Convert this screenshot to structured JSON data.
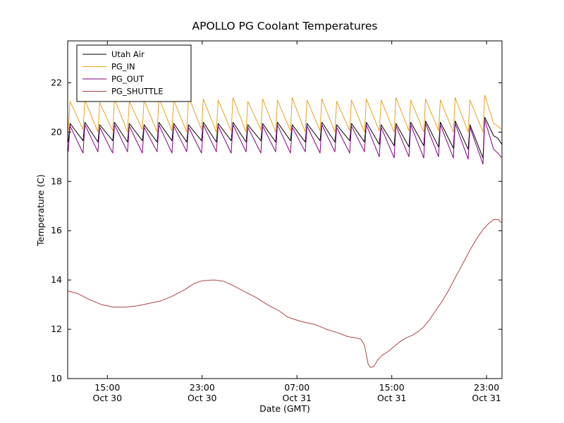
{
  "chart_data": {
    "type": "line",
    "title": "APOLLO PG Coolant Temperatures",
    "xlabel": "Date (GMT)",
    "ylabel": "Temperature (C)",
    "x_unit": "hours since Oct 30 00:00 GMT",
    "xlim": [
      11.65,
      48.3
    ],
    "ylim": [
      10,
      23.7
    ],
    "grid": false,
    "legend_position": "upper left",
    "x_ticks": [
      {
        "value": 15,
        "time": "15:00",
        "date": "Oct 30"
      },
      {
        "value": 23,
        "time": "23:00",
        "date": "Oct 30"
      },
      {
        "value": 31,
        "time": "07:00",
        "date": "Oct 31"
      },
      {
        "value": 39,
        "time": "15:00",
        "date": "Oct 31"
      },
      {
        "value": 47,
        "time": "23:00",
        "date": "Oct 31"
      }
    ],
    "y_ticks": [
      10,
      12,
      14,
      16,
      18,
      20,
      22
    ],
    "series": [
      {
        "name": "Utah Air",
        "color": "#000000",
        "points": [
          [
            11.7,
            19.6
          ],
          [
            11.85,
            20.35
          ],
          [
            12.95,
            19.65
          ],
          [
            13.1,
            20.4
          ],
          [
            14.2,
            19.6
          ],
          [
            14.35,
            20.3
          ],
          [
            15.45,
            19.65
          ],
          [
            15.6,
            20.4
          ],
          [
            16.7,
            19.6
          ],
          [
            16.85,
            20.35
          ],
          [
            17.95,
            19.65
          ],
          [
            18.1,
            20.3
          ],
          [
            19.2,
            19.6
          ],
          [
            19.35,
            20.4
          ],
          [
            20.45,
            19.65
          ],
          [
            20.6,
            20.35
          ],
          [
            21.7,
            19.6
          ],
          [
            21.85,
            20.3
          ],
          [
            22.95,
            19.65
          ],
          [
            23.1,
            20.4
          ],
          [
            24.2,
            19.6
          ],
          [
            24.35,
            20.35
          ],
          [
            25.45,
            19.65
          ],
          [
            25.6,
            20.4
          ],
          [
            26.7,
            19.6
          ],
          [
            26.85,
            20.3
          ],
          [
            27.95,
            19.65
          ],
          [
            28.1,
            20.35
          ],
          [
            29.2,
            19.6
          ],
          [
            29.35,
            20.4
          ],
          [
            30.45,
            19.65
          ],
          [
            30.6,
            20.3
          ],
          [
            31.7,
            19.6
          ],
          [
            31.85,
            20.35
          ],
          [
            32.95,
            19.65
          ],
          [
            33.1,
            20.4
          ],
          [
            34.2,
            19.6
          ],
          [
            34.35,
            20.3
          ],
          [
            35.45,
            19.65
          ],
          [
            35.6,
            20.35
          ],
          [
            36.7,
            19.6
          ],
          [
            36.85,
            20.4
          ],
          [
            37.95,
            19.5
          ],
          [
            38.1,
            20.3
          ],
          [
            39.2,
            19.45
          ],
          [
            39.35,
            20.35
          ],
          [
            40.45,
            19.4
          ],
          [
            40.6,
            20.4
          ],
          [
            41.7,
            19.45
          ],
          [
            41.85,
            20.45
          ],
          [
            42.95,
            19.4
          ],
          [
            43.1,
            20.4
          ],
          [
            44.2,
            19.35
          ],
          [
            44.35,
            20.45
          ],
          [
            45.45,
            19.3
          ],
          [
            45.6,
            20.3
          ],
          [
            46.7,
            18.95
          ],
          [
            46.85,
            20.6
          ],
          [
            47.6,
            19.85
          ],
          [
            47.95,
            19.75
          ],
          [
            48.3,
            19.5
          ]
        ]
      },
      {
        "name": "PG_IN",
        "color": "#e8a020",
        "points": [
          [
            11.7,
            20.05
          ],
          [
            11.85,
            21.25
          ],
          [
            12.95,
            20.1
          ],
          [
            13.1,
            21.3
          ],
          [
            14.2,
            20
          ],
          [
            14.35,
            21.2
          ],
          [
            15.45,
            20.05
          ],
          [
            15.6,
            21.35
          ],
          [
            16.7,
            20
          ],
          [
            16.85,
            21.25
          ],
          [
            17.95,
            20.1
          ],
          [
            18.1,
            21.3
          ],
          [
            19.2,
            20
          ],
          [
            19.35,
            21.4
          ],
          [
            20.45,
            20.05
          ],
          [
            20.6,
            21.3
          ],
          [
            21.7,
            20
          ],
          [
            21.85,
            21.45
          ],
          [
            22.95,
            20.1
          ],
          [
            23.1,
            21.35
          ],
          [
            24.2,
            20
          ],
          [
            24.35,
            21.3
          ],
          [
            25.45,
            20.05
          ],
          [
            25.6,
            21.4
          ],
          [
            26.7,
            20
          ],
          [
            26.85,
            21.25
          ],
          [
            27.95,
            20.1
          ],
          [
            28.1,
            21.35
          ],
          [
            29.2,
            20
          ],
          [
            29.35,
            21.3
          ],
          [
            30.45,
            20.05
          ],
          [
            30.6,
            21.4
          ],
          [
            31.7,
            20
          ],
          [
            31.85,
            21.3
          ],
          [
            32.95,
            20.05
          ],
          [
            33.1,
            21.35
          ],
          [
            34.2,
            20
          ],
          [
            34.35,
            21.25
          ],
          [
            35.45,
            20.05
          ],
          [
            35.6,
            21.3
          ],
          [
            36.7,
            20
          ],
          [
            36.85,
            21.35
          ],
          [
            37.95,
            20.05
          ],
          [
            38.1,
            21.3
          ],
          [
            39.2,
            20
          ],
          [
            39.35,
            21.4
          ],
          [
            40.45,
            20.05
          ],
          [
            40.6,
            21.3
          ],
          [
            41.7,
            20
          ],
          [
            41.85,
            21.35
          ],
          [
            42.95,
            20.05
          ],
          [
            43.1,
            21.3
          ],
          [
            44.2,
            20
          ],
          [
            44.35,
            21.4
          ],
          [
            45.45,
            20
          ],
          [
            45.6,
            21.3
          ],
          [
            46.7,
            20
          ],
          [
            46.85,
            21.5
          ],
          [
            47.6,
            20.35
          ],
          [
            47.95,
            20.25
          ],
          [
            48.3,
            20.1
          ]
        ]
      },
      {
        "name": "PG_OUT",
        "color": "#800080",
        "points": [
          [
            11.7,
            19.2
          ],
          [
            11.85,
            20.25
          ],
          [
            12.95,
            19.15
          ],
          [
            13.1,
            20.3
          ],
          [
            14.2,
            19.2
          ],
          [
            14.35,
            20.2
          ],
          [
            15.45,
            19.15
          ],
          [
            15.6,
            20.3
          ],
          [
            16.7,
            19.2
          ],
          [
            16.85,
            20.25
          ],
          [
            17.95,
            19.15
          ],
          [
            18.1,
            20.2
          ],
          [
            19.2,
            19.2
          ],
          [
            19.35,
            20.3
          ],
          [
            20.45,
            19.15
          ],
          [
            20.6,
            20.25
          ],
          [
            21.7,
            19.2
          ],
          [
            21.85,
            20.2
          ],
          [
            22.95,
            19.15
          ],
          [
            23.1,
            20.3
          ],
          [
            24.2,
            19.2
          ],
          [
            24.35,
            20.25
          ],
          [
            25.45,
            19.15
          ],
          [
            25.6,
            20.3
          ],
          [
            26.7,
            19.2
          ],
          [
            26.85,
            20.2
          ],
          [
            27.95,
            19.15
          ],
          [
            28.1,
            20.25
          ],
          [
            29.2,
            19.2
          ],
          [
            29.35,
            20.3
          ],
          [
            30.45,
            19.15
          ],
          [
            30.6,
            20.2
          ],
          [
            31.7,
            19.2
          ],
          [
            31.85,
            20.25
          ],
          [
            32.95,
            19.15
          ],
          [
            33.1,
            20.3
          ],
          [
            34.2,
            19.2
          ],
          [
            34.35,
            20.2
          ],
          [
            35.45,
            19.15
          ],
          [
            35.6,
            20.25
          ],
          [
            36.7,
            19.2
          ],
          [
            36.85,
            20.3
          ],
          [
            37.95,
            19
          ],
          [
            38.1,
            20.2
          ],
          [
            39.2,
            18.95
          ],
          [
            39.35,
            20.25
          ],
          [
            40.45,
            19
          ],
          [
            40.6,
            20.3
          ],
          [
            41.7,
            18.95
          ],
          [
            41.85,
            20.35
          ],
          [
            42.95,
            19
          ],
          [
            43.1,
            20.3
          ],
          [
            44.2,
            18.95
          ],
          [
            44.35,
            20.35
          ],
          [
            45.45,
            18.9
          ],
          [
            45.6,
            20.2
          ],
          [
            46.7,
            18.7
          ],
          [
            46.85,
            20.5
          ],
          [
            47.6,
            19.3
          ],
          [
            47.95,
            19.15
          ],
          [
            48.3,
            18.95
          ]
        ]
      },
      {
        "name": "PG_SHUTTLE",
        "color": "#aa4444",
        "points": [
          [
            11.7,
            13.55
          ],
          [
            12.5,
            13.45
          ],
          [
            13.5,
            13.2
          ],
          [
            14.5,
            13
          ],
          [
            15.5,
            12.9
          ],
          [
            16.5,
            12.9
          ],
          [
            17.5,
            12.95
          ],
          [
            18.5,
            13.05
          ],
          [
            19.5,
            13.15
          ],
          [
            20.5,
            13.35
          ],
          [
            21.5,
            13.6
          ],
          [
            22.3,
            13.85
          ],
          [
            23,
            13.97
          ],
          [
            24,
            14
          ],
          [
            24.8,
            13.95
          ],
          [
            25.5,
            13.8
          ],
          [
            26.5,
            13.55
          ],
          [
            27.5,
            13.3
          ],
          [
            28.5,
            13
          ],
          [
            29.5,
            12.75
          ],
          [
            30.2,
            12.5
          ],
          [
            30.8,
            12.4
          ],
          [
            31.5,
            12.3
          ],
          [
            32.5,
            12.2
          ],
          [
            33.5,
            12
          ],
          [
            34.5,
            11.85
          ],
          [
            35.3,
            11.7
          ],
          [
            36,
            11.65
          ],
          [
            36.4,
            11.6
          ],
          [
            36.7,
            11.35
          ],
          [
            37,
            10.6
          ],
          [
            37.2,
            10.45
          ],
          [
            37.5,
            10.5
          ],
          [
            37.8,
            10.75
          ],
          [
            38.2,
            10.95
          ],
          [
            38.7,
            11.1
          ],
          [
            39.2,
            11.3
          ],
          [
            39.7,
            11.5
          ],
          [
            40.2,
            11.65
          ],
          [
            40.7,
            11.75
          ],
          [
            41.2,
            11.9
          ],
          [
            41.7,
            12.1
          ],
          [
            42.2,
            12.4
          ],
          [
            42.7,
            12.75
          ],
          [
            43.2,
            13.1
          ],
          [
            43.7,
            13.5
          ],
          [
            44.2,
            13.95
          ],
          [
            44.7,
            14.4
          ],
          [
            45.2,
            14.85
          ],
          [
            45.7,
            15.3
          ],
          [
            46.2,
            15.7
          ],
          [
            46.7,
            16.05
          ],
          [
            47.2,
            16.3
          ],
          [
            47.6,
            16.45
          ],
          [
            48,
            16.45
          ],
          [
            48.3,
            16.3
          ]
        ]
      }
    ]
  }
}
